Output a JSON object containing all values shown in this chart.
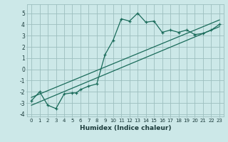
{
  "xlabel": "Humidex (Indice chaleur)",
  "bg_color": "#cce8e8",
  "grid_color": "#9dbfbf",
  "line_color": "#1a6b5a",
  "xlim": [
    -0.5,
    23.5
  ],
  "ylim": [
    -4.2,
    5.8
  ],
  "x_ticks": [
    0,
    1,
    2,
    3,
    4,
    5,
    6,
    7,
    8,
    9,
    10,
    11,
    12,
    13,
    14,
    15,
    16,
    17,
    18,
    19,
    20,
    21,
    22,
    23
  ],
  "y_ticks": [
    -4,
    -3,
    -2,
    -1,
    0,
    1,
    2,
    3,
    4,
    5
  ],
  "data_x": [
    0,
    1,
    2,
    3,
    4,
    5,
    5.5,
    6,
    7,
    8,
    9,
    10,
    11,
    12,
    13,
    14,
    15,
    16,
    17,
    18,
    19,
    20,
    21,
    22,
    23
  ],
  "data_y": [
    -2.8,
    -2.0,
    -3.2,
    -3.5,
    -2.2,
    -2.1,
    -2.1,
    -1.8,
    -1.5,
    -1.3,
    1.3,
    2.6,
    4.5,
    4.3,
    5.0,
    4.2,
    4.3,
    3.3,
    3.5,
    3.3,
    3.5,
    3.1,
    3.2,
    3.5,
    4.0
  ],
  "trend1_x": [
    0,
    23
  ],
  "trend1_y": [
    -3.2,
    3.8
  ],
  "trend2_x": [
    0,
    23
  ],
  "trend2_y": [
    -2.5,
    4.4
  ],
  "xlabel_fontsize": 6.5,
  "tick_fontsize": 5.0
}
